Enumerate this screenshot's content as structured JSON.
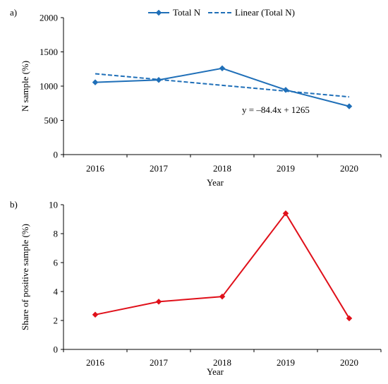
{
  "chart_data": [
    {
      "panel_label": "a)",
      "type": "line",
      "categories": [
        "2016",
        "2017",
        "2018",
        "2019",
        "2020"
      ],
      "series": [
        {
          "name": "Total N",
          "values": [
            1055,
            1090,
            1260,
            945,
            705
          ],
          "color": "#1f6fb8",
          "style": "solid",
          "marker": "diamond"
        },
        {
          "name": "Linear (Total N)",
          "values": [
            1180.6,
            1096.2,
            1011.8,
            927.4,
            843.0
          ],
          "color": "#1f6fb8",
          "style": "dashed",
          "marker": "none"
        }
      ],
      "annotation": "y = –84.4x + 1265",
      "xlabel": "Year",
      "ylabel": "N sample (%)",
      "ylim": [
        0,
        2000
      ],
      "yticks": [
        "0",
        "500",
        "1000",
        "1500",
        "2000"
      ],
      "legend": "top-center",
      "grid": false
    },
    {
      "panel_label": "b)",
      "type": "line",
      "categories": [
        "2016",
        "2017",
        "2018",
        "2019",
        "2020"
      ],
      "series": [
        {
          "values": [
            2.4,
            3.3,
            3.65,
            9.4,
            2.15
          ],
          "color": "#e0101a",
          "style": "solid",
          "marker": "diamond"
        }
      ],
      "xlabel": "Year",
      "ylabel": "Share of positive sample (%)",
      "ylim": [
        0,
        10
      ],
      "yticks": [
        "0",
        "2",
        "4",
        "6",
        "8",
        "10"
      ],
      "grid": false
    }
  ]
}
